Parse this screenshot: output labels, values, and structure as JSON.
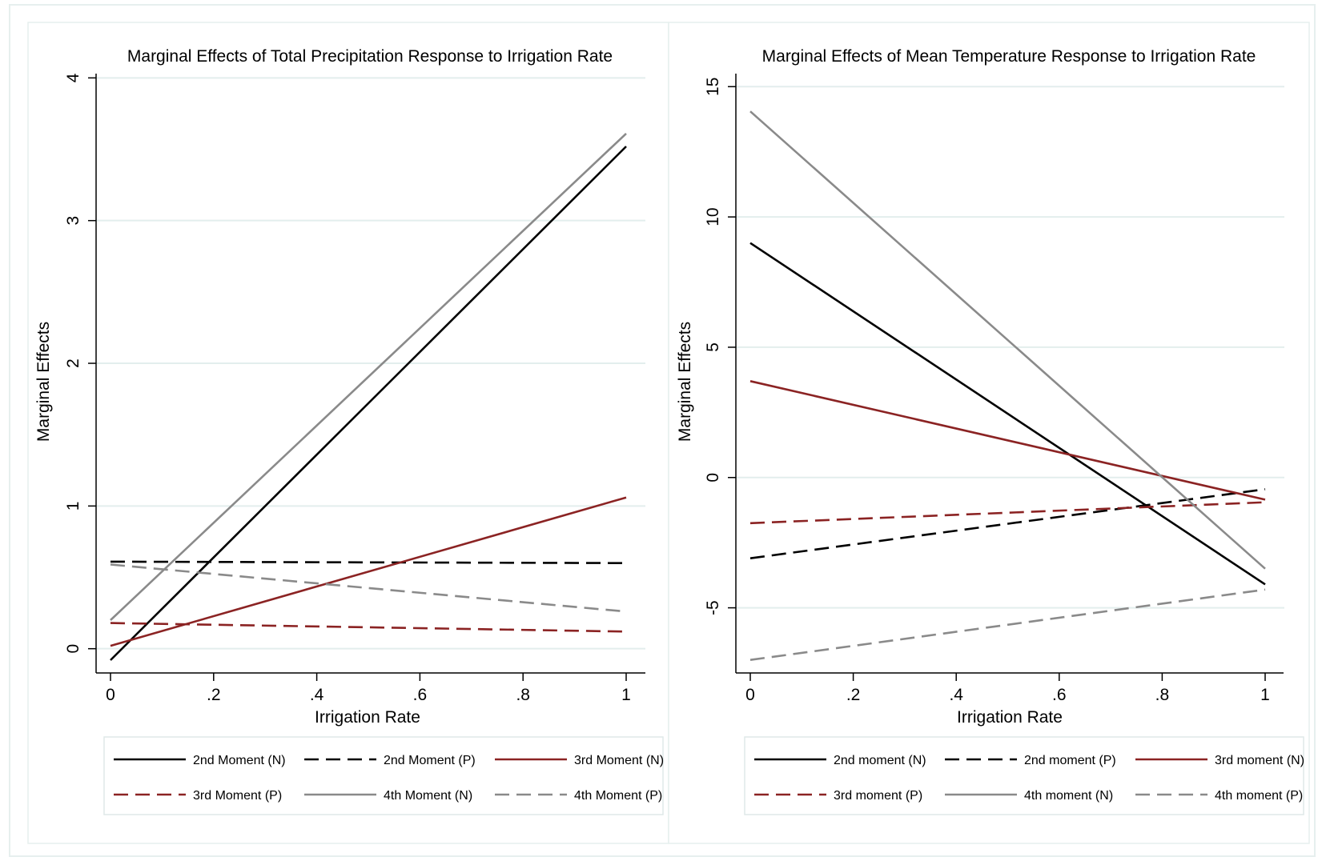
{
  "colors": {
    "black": "#000000",
    "maroon": "#8b2323",
    "gray": "#8a8a8a",
    "grid": "#e3eeed",
    "border": "#e6efee"
  },
  "chart_data": [
    {
      "type": "line",
      "title": "Marginal Effects of Total Precipitation Response to Irrigation Rate",
      "xlabel": "Irrigation Rate",
      "ylabel": "Marginal Effects",
      "xlim": [
        0,
        1
      ],
      "ylim": [
        -0.17,
        4.03
      ],
      "xticks": [
        0,
        0.2,
        0.4,
        0.6,
        0.8,
        1
      ],
      "xtick_labels": [
        "0",
        ".2",
        ".4",
        ".6",
        ".8",
        "1"
      ],
      "yticks": [
        0,
        1,
        2,
        3,
        4
      ],
      "ytick_labels": [
        "0",
        "1",
        "2",
        "3",
        "4"
      ],
      "grid": true,
      "legend_position": "bottom",
      "series": [
        {
          "name": "2nd Moment (N)",
          "color": "black",
          "dash": "solid",
          "x": [
            0,
            1
          ],
          "y": [
            -0.08,
            3.52
          ]
        },
        {
          "name": "2nd Moment (P)",
          "color": "black",
          "dash": "dashed",
          "x": [
            0,
            1
          ],
          "y": [
            0.61,
            0.6
          ]
        },
        {
          "name": "3rd Moment (N)",
          "color": "maroon",
          "dash": "solid",
          "x": [
            0,
            1
          ],
          "y": [
            0.02,
            1.06
          ]
        },
        {
          "name": "3rd Moment (P)",
          "color": "maroon",
          "dash": "dashed",
          "x": [
            0,
            1
          ],
          "y": [
            0.18,
            0.12
          ]
        },
        {
          "name": "4th Moment (N)",
          "color": "gray",
          "dash": "solid",
          "x": [
            0,
            1
          ],
          "y": [
            0.2,
            3.61
          ]
        },
        {
          "name": "4th Moment (P)",
          "color": "gray",
          "dash": "dashed",
          "x": [
            0,
            1
          ],
          "y": [
            0.59,
            0.26
          ]
        }
      ]
    },
    {
      "type": "line",
      "title": "Marginal Effects of Mean Temperature Response to Irrigation Rate",
      "xlabel": "Irrigation Rate",
      "ylabel": "Marginal Effects",
      "xlim": [
        0,
        1
      ],
      "ylim": [
        -7.5,
        15.5
      ],
      "xticks": [
        0,
        0.2,
        0.4,
        0.6,
        0.8,
        1
      ],
      "xtick_labels": [
        "0",
        ".2",
        ".4",
        ".6",
        ".8",
        "1"
      ],
      "yticks": [
        -5,
        0,
        5,
        10,
        15
      ],
      "ytick_labels": [
        "-5",
        "0",
        "5",
        "10",
        "15"
      ],
      "grid": true,
      "legend_position": "bottom",
      "series": [
        {
          "name": "2nd moment (N)",
          "color": "black",
          "dash": "solid",
          "x": [
            0,
            1
          ],
          "y": [
            9.0,
            -4.1
          ]
        },
        {
          "name": "2nd moment (P)",
          "color": "black",
          "dash": "dashed",
          "x": [
            0,
            1
          ],
          "y": [
            -3.1,
            -0.45
          ]
        },
        {
          "name": "3rd moment (N)",
          "color": "maroon",
          "dash": "solid",
          "x": [
            0,
            1
          ],
          "y": [
            3.7,
            -0.85
          ]
        },
        {
          "name": "3rd moment (P)",
          "color": "maroon",
          "dash": "dashed",
          "x": [
            0,
            1
          ],
          "y": [
            -1.75,
            -0.95
          ]
        },
        {
          "name": "4th moment (N)",
          "color": "gray",
          "dash": "solid",
          "x": [
            0,
            1
          ],
          "y": [
            14.05,
            -3.5
          ]
        },
        {
          "name": "4th moment (P)",
          "color": "gray",
          "dash": "dashed",
          "x": [
            0,
            1
          ],
          "y": [
            -7.0,
            -4.3
          ]
        }
      ]
    }
  ]
}
